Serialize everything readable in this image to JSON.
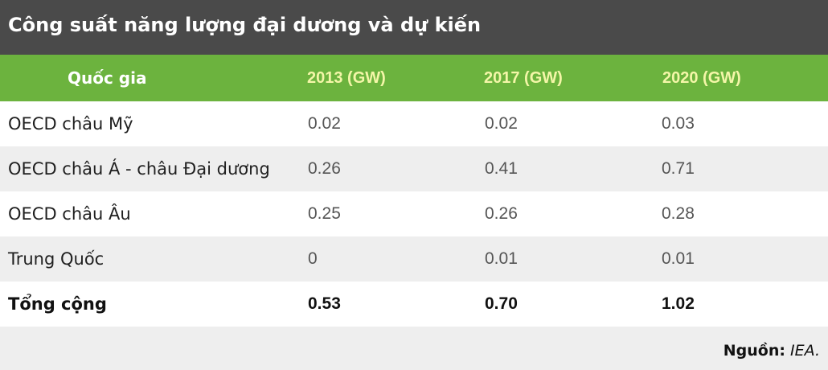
{
  "title": "Công suất năng lượng đại dương và dự kiến",
  "table": {
    "headers": [
      "Quốc gia",
      "2013 (GW)",
      "2017 (GW)",
      "2020 (GW)"
    ],
    "rows": [
      [
        "OECD châu Mỹ",
        "0.02",
        "0.02",
        "0.03"
      ],
      [
        "OECD châu Á - châu Đại dương",
        "0.26",
        "0.41",
        "0.71"
      ],
      [
        "OECD châu Âu",
        "0.25",
        "0.26",
        "0.28"
      ],
      [
        "Trung Quốc",
        "0",
        "0.01",
        "0.01"
      ],
      [
        "Tổng cộng",
        "0.53",
        "0.70",
        "1.02"
      ]
    ]
  },
  "source": {
    "label": "Nguồn:",
    "value": "IEA."
  },
  "colors": {
    "title_bar": "#4a4a4a",
    "header_green": "#6cb33e",
    "header_year_text": "#f4f6a8",
    "row_alt": "#eeeeee"
  }
}
